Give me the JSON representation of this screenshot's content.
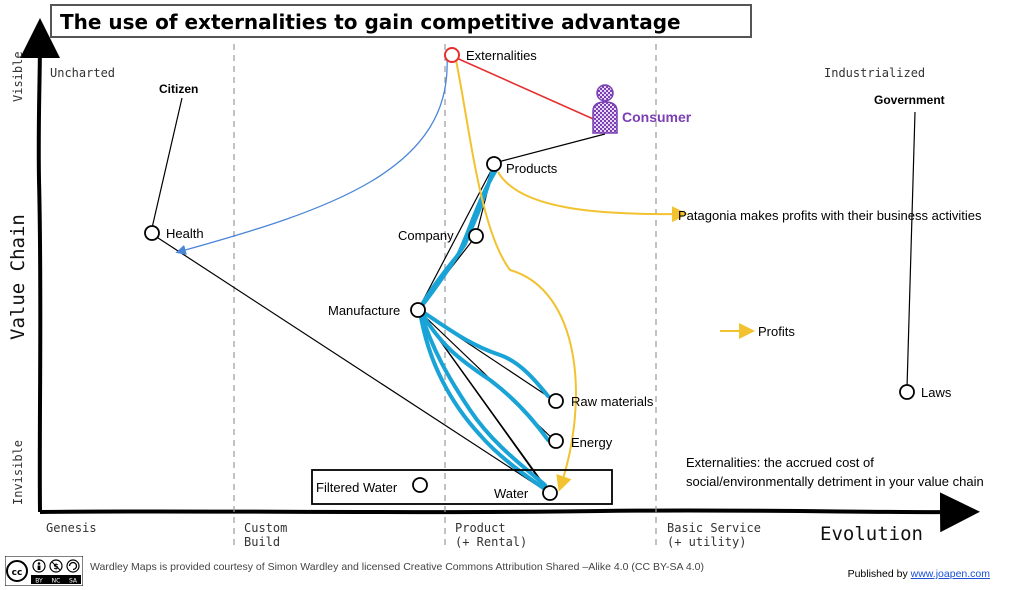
{
  "title": "The use of externalities to gain competitive advantage",
  "axis": {
    "y_label": "Value Chain",
    "y_top": "Visible",
    "y_bottom": "Invisible",
    "x_label": "Evolution"
  },
  "stages": [
    {
      "line1": "Genesis",
      "line2": ""
    },
    {
      "line1": "Custom",
      "line2": "Build"
    },
    {
      "line1": "Product",
      "line2": "(+ Rental)"
    },
    {
      "line1": "Basic Service",
      "line2": "(+ utility)"
    }
  ],
  "regions": {
    "left": "Uncharted",
    "right": "Industrialized"
  },
  "actors": {
    "citizen": "Citizen",
    "government": "Government",
    "consumer": "Consumer"
  },
  "components": {
    "externalities": "Externalities",
    "products": "Products",
    "health": "Health",
    "company": "Company",
    "manufacture": "Manufacture",
    "raw_materials": "Raw materials",
    "energy": "Energy",
    "filtered_water": "Filtered Water",
    "water": "Water",
    "laws": "Laws"
  },
  "annotations": {
    "patagonia": "Patagonia makes profits with their business activities",
    "externalities_line1": "Externalities: the accrued cost of",
    "externalities_line2": "social/environmentally detriment in your value chain"
  },
  "legend": {
    "profits": "Profits"
  },
  "colors": {
    "profit": "#f2c230",
    "flow": "#1aa3d6",
    "externality_link": "#e53030",
    "consumer": "#7a3fb2",
    "arrow_blue": "#4a86d8"
  },
  "footer": {
    "credit": "Wardley Maps is provided courtesy of Simon Wardley and licensed  Creative Commons Attribution Shared –Alike 4.0 (CC BY-SA 4.0)",
    "published_prefix": "Published by",
    "published_link": "www.joapen.com",
    "license_icons": [
      "cc-icon",
      "by-icon",
      "nc-icon",
      "sa-icon"
    ],
    "license_labels": [
      "BY",
      "NC",
      "SA"
    ]
  }
}
